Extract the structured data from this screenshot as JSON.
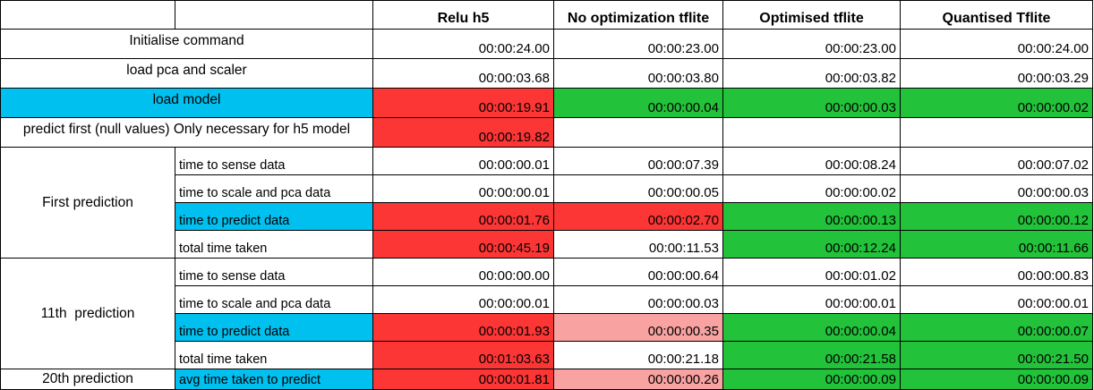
{
  "columns": [
    "",
    "",
    "Relu h5",
    "No optimization tflite",
    "Optimised tflite",
    "Quantised Tflite"
  ],
  "colors": {
    "highlight_label": "#00c0f0",
    "slow": "#fc3535",
    "fast": "#22c23a",
    "medium": "#f8a2a2"
  },
  "rows": {
    "init": {
      "label": "Initialise command",
      "values": [
        "00:00:24.00",
        "00:00:23.00",
        "00:00:23.00",
        "00:00:24.00"
      ]
    },
    "pca": {
      "label": "load pca and scaler",
      "values": [
        "00:00:03.68",
        "00:00:03.80",
        "00:00:03.82",
        "00:00:03.29"
      ]
    },
    "model": {
      "label": "load model",
      "values": [
        "00:00:19.91",
        "00:00:00.04",
        "00:00:00.03",
        "00:00:00.02"
      ]
    },
    "predict_first": {
      "label": "predict first (null values) Only necessary for h5 model",
      "values": [
        "00:00:19.82",
        "",
        "",
        ""
      ]
    }
  },
  "first": {
    "group": "First prediction",
    "rows": [
      {
        "label": "time to sense data",
        "values": [
          "00:00:00.01",
          "00:00:07.39",
          "00:00:08.24",
          "00:00:07.02"
        ]
      },
      {
        "label": "time to scale and pca data",
        "values": [
          "00:00:00.01",
          "00:00:00.05",
          "00:00:00.02",
          "00:00:00.03"
        ]
      },
      {
        "label": "time to predict data",
        "values": [
          "00:00:01.76",
          "00:00:02.70",
          "00:00:00.13",
          "00:00:00.12"
        ]
      },
      {
        "label": "total time taken",
        "values": [
          "00:00:45.19",
          "00:00:11.53",
          "00:00:12.24",
          "00:00:11.66"
        ]
      }
    ]
  },
  "eleventh": {
    "group": "11th  prediction",
    "rows": [
      {
        "label": "time to sense data",
        "values": [
          "00:00:00.00",
          "00:00:00.64",
          "00:00:01.02",
          "00:00:00.83"
        ]
      },
      {
        "label": "time to scale and pca data",
        "values": [
          "00:00:00.01",
          "00:00:00.03",
          "00:00:00.01",
          "00:00:00.01"
        ]
      },
      {
        "label": "time to predict data",
        "values": [
          "00:00:01.93",
          "00:00:00.35",
          "00:00:00.04",
          "00:00:00.07"
        ]
      },
      {
        "label": "total time taken",
        "values": [
          "00:01:03.63",
          "00:00:21.18",
          "00:00:21.58",
          "00:00:21.50"
        ]
      }
    ]
  },
  "twentieth": {
    "group": "20th prediction",
    "label": "avg time taken to predict",
    "values": [
      "00:00:01.81",
      "00:00:00.26",
      "00:00:00.09",
      "00:00:00.09"
    ]
  }
}
